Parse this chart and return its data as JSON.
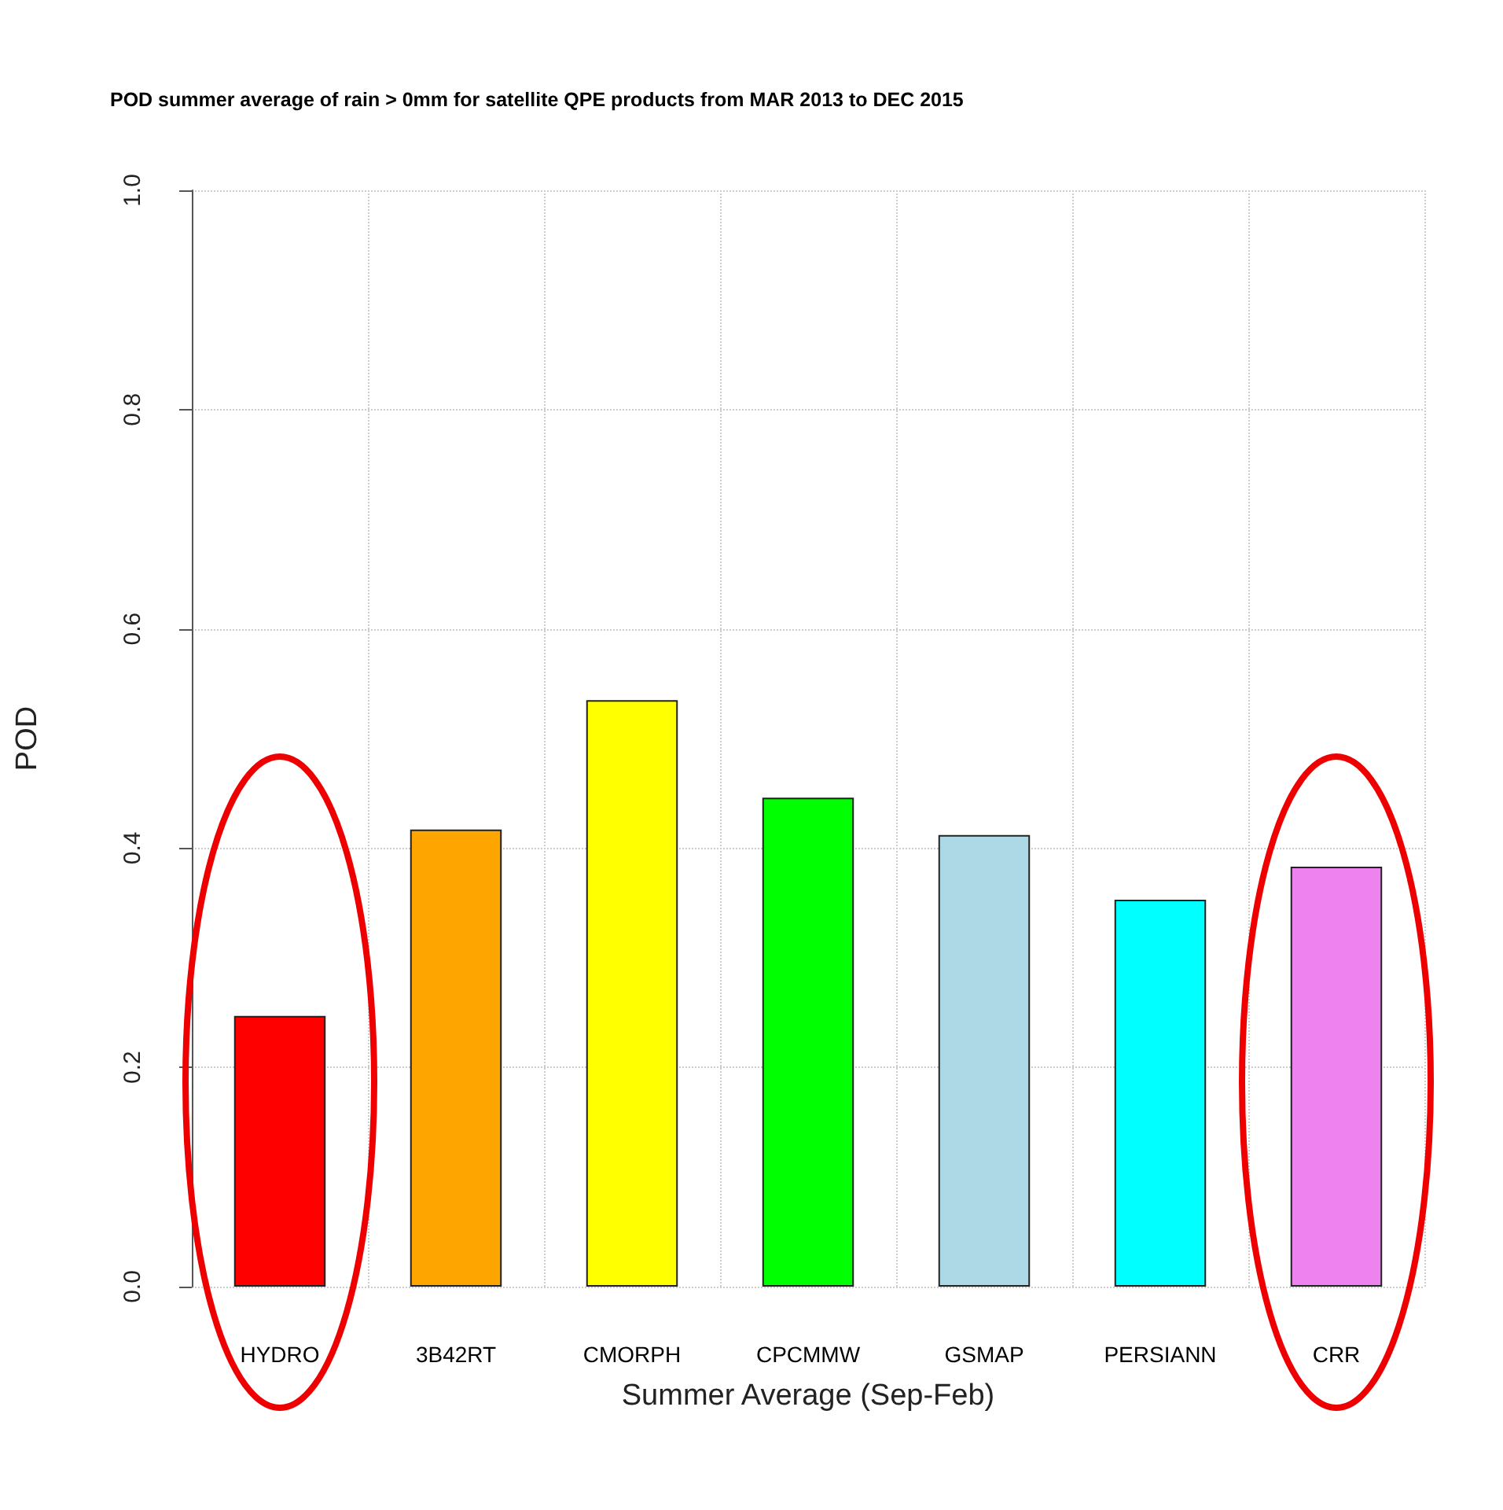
{
  "chart_data": {
    "type": "bar",
    "title": "POD summer average of rain > 0mm for satellite QPE products from MAR 2013 to DEC 2015",
    "xlabel": "Summer Average (Sep-Feb)",
    "ylabel": "POD",
    "categories": [
      "HYDRO",
      "3B42RT",
      "CMORPH",
      "CPCMMW",
      "GSMAP",
      "PERSIANN",
      "CRR"
    ],
    "values": [
      0.247,
      0.417,
      0.535,
      0.446,
      0.412,
      0.353,
      0.383
    ],
    "colors": [
      "#ff0000",
      "#ffa500",
      "#ffff00",
      "#00ff00",
      "#add8e6",
      "#00ffff",
      "#ee82ee"
    ],
    "ylim": [
      0,
      1
    ],
    "yticks": [
      {
        "value": 0,
        "label": "0.0"
      },
      0.2,
      0.4,
      0.6,
      0.8,
      {
        "value": 1,
        "label": "1.0"
      }
    ],
    "grid": true
  }
}
